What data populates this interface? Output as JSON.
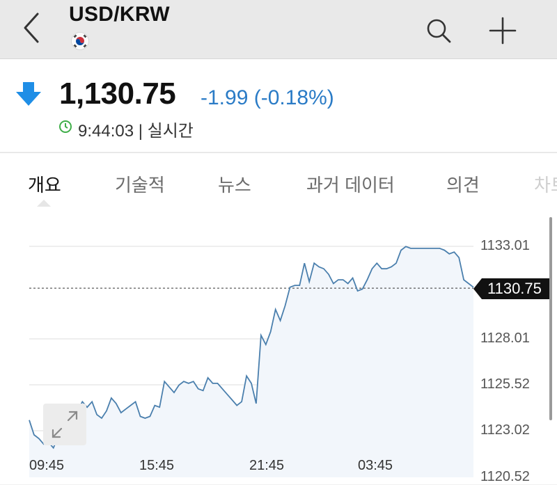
{
  "header": {
    "title": "USD/KRW",
    "flag_icon": "south-korea-flag-icon"
  },
  "quote": {
    "price": "1,130.75",
    "change": "-1.99 (-0.18%)",
    "time": "9:44:03 | 실시간",
    "change_color": "#2a7bc6",
    "arrow_color": "#1f8ee6"
  },
  "tabs": [
    {
      "label": "개요"
    },
    {
      "label": "기술적"
    },
    {
      "label": "뉴스"
    },
    {
      "label": "과거 데이터"
    },
    {
      "label": "의견"
    },
    {
      "label": "차트"
    }
  ],
  "chart_data": {
    "type": "area",
    "x_tick_labels": [
      "09:45",
      "15:45",
      "21:45",
      "03:45"
    ],
    "y_tick_labels": [
      "1133.01",
      "1128.01",
      "1125.52",
      "1123.02",
      "1120.52"
    ],
    "ylim": [
      1120.52,
      1134.26
    ],
    "current_value_label": "1130.75",
    "reference_line_value": 1130.75,
    "line_color": "#4a7fad",
    "fill_color": "#f2f6fb",
    "y": [
      1123.6,
      1122.8,
      1122.6,
      1122.3,
      1122.4,
      1122.1,
      1122.7,
      1123.2,
      1123.8,
      1124.1,
      1124.1,
      1124.6,
      1124.3,
      1124.6,
      1123.9,
      1123.7,
      1124.1,
      1124.8,
      1124.5,
      1124.0,
      1124.2,
      1124.4,
      1124.6,
      1123.8,
      1123.7,
      1123.8,
      1124.4,
      1124.3,
      1125.7,
      1125.4,
      1125.1,
      1125.5,
      1125.7,
      1125.6,
      1125.7,
      1125.3,
      1125.2,
      1125.9,
      1125.6,
      1125.6,
      1125.3,
      1125.0,
      1124.7,
      1124.4,
      1124.6,
      1126.0,
      1125.6,
      1124.5,
      1128.2,
      1127.7,
      1128.4,
      1129.6,
      1129.0,
      1129.8,
      1130.8,
      1130.9,
      1130.9,
      1132.1,
      1131.1,
      1132.1,
      1131.9,
      1131.8,
      1131.5,
      1131.0,
      1131.2,
      1131.2,
      1131.0,
      1131.3,
      1130.6,
      1130.7,
      1131.2,
      1131.8,
      1132.1,
      1131.8,
      1131.8,
      1131.9,
      1132.1,
      1132.8,
      1133.0,
      1132.9,
      1132.9,
      1132.9,
      1132.9,
      1132.9,
      1132.9,
      1132.9,
      1132.8,
      1132.6,
      1132.7,
      1132.4,
      1131.2,
      1131.0,
      1130.8
    ]
  }
}
